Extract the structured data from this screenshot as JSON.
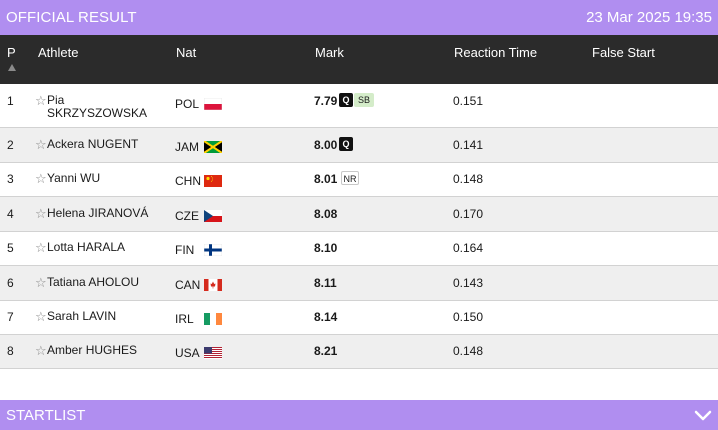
{
  "header": {
    "title": "OFFICIAL RESULT",
    "datetime": "23 Mar 2025 19:35"
  },
  "table": {
    "columns": {
      "pos": "P",
      "athlete": "Athlete",
      "nat": "Nat",
      "mark": "Mark",
      "reaction": "Reaction Time",
      "false_start": "False Start"
    },
    "rows": [
      {
        "pos": "1",
        "first": "Pia",
        "last": "SKRZYSZOWSKA",
        "nat": "POL",
        "mark": "7.79",
        "q": "Q",
        "record": "SB",
        "rt": "0.151"
      },
      {
        "pos": "2",
        "first": "Ackera",
        "last": "NUGENT",
        "nat": "JAM",
        "mark": "8.00",
        "q": "Q",
        "record": "",
        "rt": "0.141"
      },
      {
        "pos": "3",
        "first": "Yanni",
        "last": "WU",
        "nat": "CHN",
        "mark": "8.01",
        "q": "",
        "record": "NR",
        "rt": "0.148"
      },
      {
        "pos": "4",
        "first": "Helena",
        "last": "JIRANOVÁ",
        "nat": "CZE",
        "mark": "8.08",
        "q": "",
        "record": "",
        "rt": "0.170"
      },
      {
        "pos": "5",
        "first": "Lotta",
        "last": "HARALA",
        "nat": "FIN",
        "mark": "8.10",
        "q": "",
        "record": "",
        "rt": "0.164"
      },
      {
        "pos": "6",
        "first": "Tatiana",
        "last": "AHOLOU",
        "nat": "CAN",
        "mark": "8.11",
        "q": "",
        "record": "",
        "rt": "0.143"
      },
      {
        "pos": "7",
        "first": "Sarah",
        "last": "LAVIN",
        "nat": "IRL",
        "mark": "8.14",
        "q": "",
        "record": "",
        "rt": "0.150"
      },
      {
        "pos": "8",
        "first": "Amber",
        "last": "HUGHES",
        "nat": "USA",
        "mark": "8.21",
        "q": "",
        "record": "",
        "rt": "0.148"
      }
    ]
  },
  "startlist": {
    "title": "STARTLIST"
  },
  "icons": {
    "star": "star-icon",
    "sort": "sort-up-icon",
    "chevron": "chevron-down-icon"
  },
  "colors": {
    "accent": "#b08ef0",
    "header_bg": "#2b2b2b",
    "row_alt": "#efefef",
    "sb_badge": "#d4ecc9"
  }
}
